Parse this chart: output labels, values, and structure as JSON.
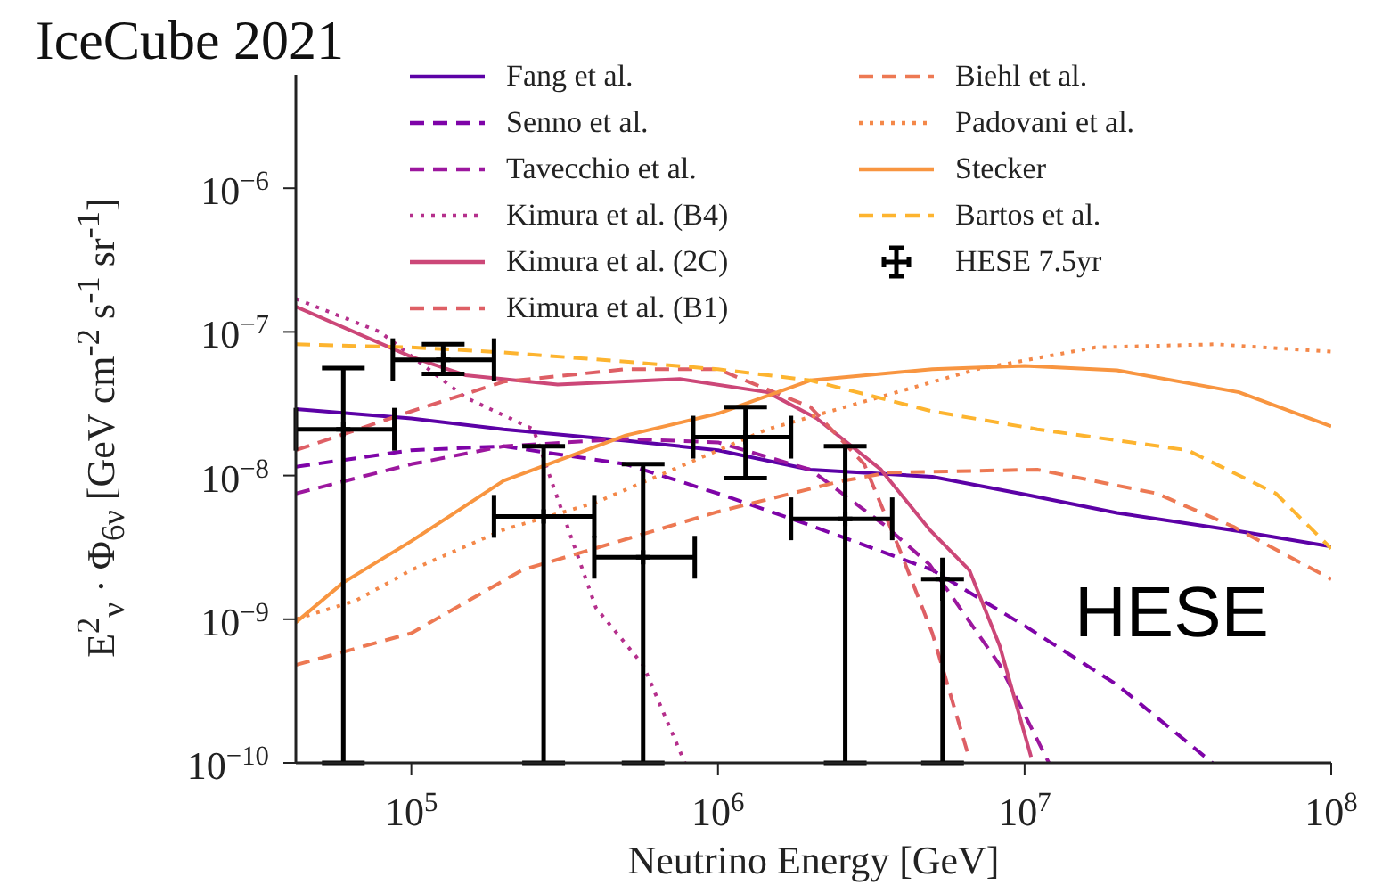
{
  "chart_data": {
    "type": "line",
    "title": "IceCube 2021",
    "xlabel": "Neutrino Energy [GeV]",
    "ylabel": "E$^{2}$$_{ν}$ · Φ$_{6ν}$ [GeV cm$^{-2}$ s$^{-1}$ sr$^{-1}$]",
    "log": "xy",
    "legend": "top right",
    "marker": "none",
    "xlim": [
      42000,
      100000000
    ],
    "ylim": [
      1e-10,
      1e-05
    ],
    "xticks": [
      {
        "value": 100000,
        "label": "10$^{5}$"
      },
      {
        "value": 1000000,
        "label": "10$^{6}$"
      },
      {
        "value": 10000000,
        "label": "10$^{7}$"
      },
      {
        "value": 100000000,
        "label": "10$^{8}$"
      }
    ],
    "yticks": [
      {
        "value": 1e-10,
        "label": "10$^{−10}$"
      },
      {
        "value": 1e-09,
        "label": "10$^{−9}$"
      },
      {
        "value": 1e-08,
        "label": "10$^{−8}$"
      },
      {
        "value": 1e-07,
        "label": "10$^{−7}$"
      },
      {
        "value": 1e-06,
        "label": "10$^{−6}$"
      }
    ],
    "annotations": [
      "HESE"
    ],
    "series": [
      {
        "name": "Fang et al.",
        "color": "#5c01a6",
        "line_style": "solid",
        "x": [
          42000,
          100000,
          200000,
          500000,
          1000000,
          2000000,
          5000000,
          10000000,
          20000000,
          50000000,
          100000000
        ],
        "values": [
          2.9e-08,
          2.5e-08,
          2.1e-08,
          1.75e-08,
          1.5e-08,
          1.1e-08,
          9.8e-09,
          7.4e-09,
          5.5e-09,
          4.1e-09,
          3.2e-09
        ]
      },
      {
        "name": "Senno et al.",
        "color": "#7e03a8",
        "line_style": "dashed",
        "x": [
          42000,
          100000,
          200000,
          500000,
          1000000,
          2000000,
          5000000,
          10000000,
          20000000,
          41000000
        ],
        "values": [
          1.15e-08,
          1.5e-08,
          1.6e-08,
          1.2e-08,
          7.5e-09,
          4.5e-09,
          2.2e-09,
          9e-10,
          3.5e-10,
          1e-10
        ]
      },
      {
        "name": "Tavecchio et al.",
        "color": "#9c179e",
        "line_style": "dashed",
        "x": [
          42000,
          100000,
          200000,
          500000,
          1000000,
          2000000,
          3500000,
          4900000,
          8300000,
          12000000
        ],
        "values": [
          7.5e-09,
          1.2e-08,
          1.6e-08,
          1.8e-08,
          1.7e-08,
          1.1e-08,
          4.5e-09,
          2.4e-09,
          4.8e-10,
          1e-10
        ]
      },
      {
        "name": "Kimura et al. (B4)",
        "color": "#b52f8c",
        "line_style": "dotted",
        "x": [
          42000,
          79000,
          150000,
          250000,
          400000,
          570000,
          780000
        ],
        "values": [
          1.7e-07,
          1e-07,
          3.5e-08,
          2.1e-08,
          1.2e-09,
          4.8e-10,
          1e-10
        ]
      },
      {
        "name": "Kimura et al. (2C)",
        "color": "#cc4778",
        "line_style": "solid",
        "x": [
          42000,
          100000,
          150000,
          300000,
          750000,
          1450000,
          2100000,
          3400000,
          4900000,
          6600000,
          8300000,
          10500000
        ],
        "values": [
          1.5e-07,
          6.7e-08,
          5e-08,
          4.3e-08,
          4.7e-08,
          3.8e-08,
          2.5e-08,
          1.1e-08,
          4.2e-09,
          2.2e-09,
          6.5e-10,
          1.1e-10
        ]
      },
      {
        "name": "Kimura et al. (B1)",
        "color": "#de5f65",
        "line_style": "dashed",
        "x": [
          42000,
          100000,
          200000,
          500000,
          1000000,
          2000000,
          3000000,
          3900000,
          5000000,
          6500000
        ],
        "values": [
          1.5e-08,
          2.8e-08,
          4.5e-08,
          5.5e-08,
          5.5e-08,
          3e-08,
          1.2e-08,
          3.1e-09,
          8e-10,
          1.2e-10
        ]
      },
      {
        "name": "Biehl et al.",
        "color": "#ed7953",
        "line_style": "dashed",
        "x": [
          42000,
          100000,
          230000,
          1000000,
          2500000,
          3600000,
          11000000,
          27000000,
          48000000,
          100000000
        ],
        "values": [
          4.8e-10,
          8e-10,
          2.2e-09,
          5.6e-09,
          9.1e-09,
          1.05e-08,
          1.1e-08,
          7.5e-09,
          4.4e-09,
          1.9e-09
        ]
      },
      {
        "name": "Padovani et al.",
        "color": "#f48849",
        "line_style": "dotted",
        "x": [
          42000,
          66000,
          100000,
          200000,
          400000,
          1450000,
          7000000,
          17000000,
          42000000,
          100000000
        ],
        "values": [
          1e-09,
          1.35e-09,
          2.2e-09,
          4.2e-09,
          6.5e-09,
          2.1e-08,
          5.5e-08,
          7.8e-08,
          8.2e-08,
          7.3e-08
        ]
      },
      {
        "name": "Stecker",
        "color": "#f89540",
        "line_style": "solid",
        "x": [
          42000,
          60000,
          100000,
          200000,
          500000,
          1000000,
          2000000,
          5000000,
          10000000,
          20000000,
          50000000,
          100000000
        ],
        "values": [
          9.5e-10,
          1.8e-09,
          3.5e-09,
          9.2e-09,
          1.9e-08,
          2.7e-08,
          4.6e-08,
          5.5e-08,
          5.8e-08,
          5.4e-08,
          3.8e-08,
          2.2e-08
        ]
      },
      {
        "name": "Bartos et al.",
        "color": "#fdb42f",
        "line_style": "dashed",
        "x": [
          42000,
          100000,
          200000,
          500000,
          1000000,
          2000000,
          5000000,
          11000000,
          34000000,
          66000000,
          100000000
        ],
        "values": [
          8.2e-08,
          7.8e-08,
          7.2e-08,
          6.2e-08,
          5.5e-08,
          4.6e-08,
          2.8e-08,
          2.1e-08,
          1.5e-08,
          7.5e-09,
          3.1e-09
        ]
      },
      {
        "name": "HESE 7.5yr",
        "type": "scatter",
        "marker": "cross",
        "color": "#000000",
        "x": [
          60000,
          127000,
          270000,
          570000,
          1230000,
          2600000,
          5400000
        ],
        "values": [
          2.1e-08,
          6.4e-08,
          5.2e-09,
          2.7e-09,
          1.85e-08,
          5e-09,
          1.9e-09
        ],
        "errors": [
          [
            1e-10,
            5.6e-08
          ],
          [
            5.1e-08,
            8.2e-08
          ],
          [
            1e-10,
            1.6e-08
          ],
          [
            1e-10,
            1.2e-08
          ],
          [
            9.6e-09,
            3e-08
          ],
          [
            1e-10,
            1.6e-08
          ],
          [
            1e-10,
            1.9e-09
          ]
        ],
        "xerrors": [
          [
            42000,
            88000
          ],
          [
            87000,
            186000
          ],
          [
            186000,
            395000
          ],
          [
            395000,
            840000
          ],
          [
            830000,
            1730000
          ],
          [
            1730000,
            3700000
          ],
          null
        ]
      }
    ]
  }
}
